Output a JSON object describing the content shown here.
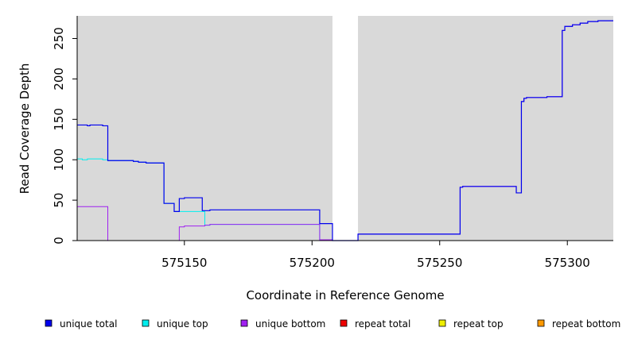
{
  "chart_data": {
    "type": "line",
    "title": "",
    "xlabel": "Coordinate in Reference Genome",
    "ylabel": "Read Coverage Depth",
    "xlim": [
      575108,
      575318
    ],
    "ylim": [
      0,
      278
    ],
    "x_ticks": [
      575150,
      575200,
      575250,
      575300
    ],
    "y_ticks": [
      0,
      50,
      100,
      150,
      200,
      250
    ],
    "x_tick_labels": [
      "575150",
      "575200",
      "575250",
      "575300"
    ],
    "y_tick_labels": [
      "0",
      "50",
      "100",
      "150",
      "200",
      "250"
    ],
    "grid": false,
    "background": "#d9d9d9",
    "gaps": [
      {
        "x0": 575208,
        "x1": 575218
      }
    ],
    "legend_position": "bottom",
    "series": [
      {
        "name": "unique total",
        "color": "#0000ee",
        "steps": [
          [
            575108,
            143
          ],
          [
            575112,
            142
          ],
          [
            575113,
            143
          ],
          [
            575118,
            142
          ],
          [
            575120,
            99
          ],
          [
            575130,
            98
          ],
          [
            575132,
            97
          ],
          [
            575135,
            96
          ],
          [
            575142,
            46
          ],
          [
            575146,
            36
          ],
          [
            575148,
            52
          ],
          [
            575150,
            53
          ],
          [
            575157,
            37
          ],
          [
            575160,
            38
          ],
          [
            575202,
            38
          ],
          [
            575203,
            21
          ],
          [
            575208,
            0
          ],
          [
            575218,
            8
          ],
          [
            575258,
            66
          ],
          [
            575259,
            67
          ],
          [
            575280,
            59
          ],
          [
            575282,
            172
          ],
          [
            575283,
            176
          ],
          [
            575284,
            177
          ],
          [
            575292,
            178
          ],
          [
            575298,
            260
          ],
          [
            575299,
            265
          ],
          [
            575302,
            267
          ],
          [
            575305,
            269
          ],
          [
            575308,
            271
          ],
          [
            575312,
            272
          ],
          [
            575318,
            272
          ]
        ]
      },
      {
        "name": "unique top",
        "color": "#00eeee",
        "steps": [
          [
            575108,
            101
          ],
          [
            575110,
            100
          ],
          [
            575112,
            101
          ],
          [
            575118,
            100
          ],
          [
            575120,
            99
          ],
          [
            575130,
            98
          ],
          [
            575132,
            97
          ],
          [
            575135,
            96
          ],
          [
            575142,
            46
          ],
          [
            575146,
            36
          ],
          [
            575158,
            19
          ],
          [
            575160,
            20
          ],
          [
            575202,
            20
          ],
          [
            575203,
            1
          ],
          [
            575208,
            0
          ],
          [
            575318,
            0
          ]
        ]
      },
      {
        "name": "unique bottom",
        "color": "#a020f0",
        "steps": [
          [
            575108,
            42
          ],
          [
            575120,
            0
          ],
          [
            575148,
            17
          ],
          [
            575150,
            18
          ],
          [
            575157,
            18
          ],
          [
            575158,
            19
          ],
          [
            575160,
            20
          ],
          [
            575202,
            20
          ],
          [
            575203,
            1
          ],
          [
            575208,
            0
          ],
          [
            575218,
            8
          ],
          [
            575258,
            66
          ],
          [
            575259,
            67
          ],
          [
            575280,
            59
          ],
          [
            575282,
            172
          ],
          [
            575283,
            176
          ],
          [
            575284,
            177
          ],
          [
            575292,
            178
          ],
          [
            575298,
            260
          ],
          [
            575299,
            265
          ],
          [
            575302,
            267
          ],
          [
            575305,
            269
          ],
          [
            575308,
            271
          ],
          [
            575312,
            272
          ],
          [
            575318,
            272
          ]
        ]
      },
      {
        "name": "repeat total",
        "color": "#ee0000",
        "steps": [
          [
            575108,
            0
          ],
          [
            575318,
            0
          ]
        ]
      },
      {
        "name": "repeat top",
        "color": "#eeee00",
        "steps": [
          [
            575108,
            0
          ],
          [
            575318,
            0
          ]
        ]
      },
      {
        "name": "repeat bottom",
        "color": "#ff9900",
        "steps": [
          [
            575108,
            0
          ],
          [
            575318,
            0
          ]
        ]
      }
    ]
  }
}
